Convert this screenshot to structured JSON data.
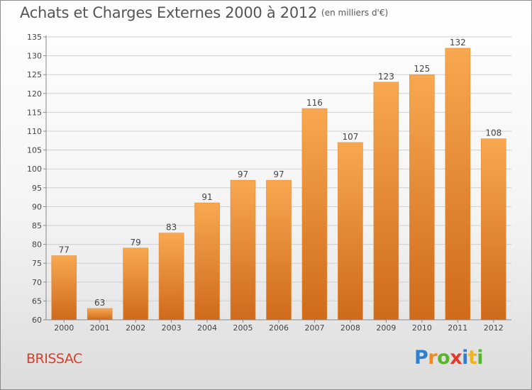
{
  "header": {
    "title": "Achats et Charges Externes 2000 à 2012",
    "unit": "(en milliers d'€)"
  },
  "footer": {
    "commune": "BRISSAC",
    "logo_text": "Proxiti"
  },
  "colors": {
    "bar_top": "#f8a850",
    "bar_bottom": "#cf6a1b",
    "commune": "#d6402a",
    "grid": "#cfcfcf"
  },
  "chart_data": {
    "type": "bar",
    "categories": [
      "2000",
      "2001",
      "2002",
      "2003",
      "2004",
      "2005",
      "2006",
      "2007",
      "2008",
      "2009",
      "2010",
      "2011",
      "2012"
    ],
    "values": [
      77,
      63,
      79,
      83,
      91,
      97,
      97,
      116,
      107,
      123,
      125,
      132,
      108
    ],
    "ylim": [
      60,
      135
    ],
    "yticks": [
      60,
      65,
      70,
      75,
      80,
      85,
      90,
      95,
      100,
      105,
      110,
      115,
      120,
      125,
      130,
      135
    ],
    "grid": true,
    "data_labels": true
  }
}
